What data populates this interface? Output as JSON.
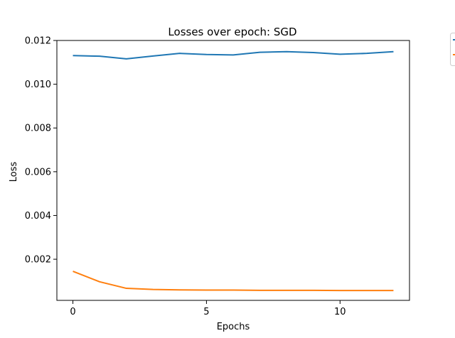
{
  "chart_data": {
    "type": "line",
    "title": "Losses over epoch: SGD",
    "xlabel": "Epochs",
    "ylabel": "Loss",
    "xlim": [
      -0.6,
      12.6
    ],
    "ylim": [
      0.00012,
      0.012
    ],
    "xticks": [
      0,
      5,
      10
    ],
    "yticks": [
      0.002,
      0.004,
      0.006,
      0.008,
      0.01,
      0.012
    ],
    "ytick_labels": [
      "0.002",
      "0.004",
      "0.006",
      "0.008",
      "0.010",
      "0.012"
    ],
    "grid": false,
    "legend": {
      "position": "outside-top-right",
      "clipped": true
    },
    "x": [
      0,
      1,
      2,
      3,
      4,
      5,
      6,
      7,
      8,
      9,
      10,
      11,
      12
    ],
    "series": [
      {
        "color": "#1f77b4",
        "values": [
          0.01131,
          0.01128,
          0.01116,
          0.01129,
          0.01141,
          0.01136,
          0.01134,
          0.01146,
          0.01149,
          0.01145,
          0.01137,
          0.01141,
          0.01149
        ]
      },
      {
        "color": "#ff7f0e",
        "values": [
          0.00145,
          0.00097,
          0.00067,
          0.00062,
          0.0006,
          0.00059,
          0.00059,
          0.00058,
          0.00058,
          0.00058,
          0.00057,
          0.00057,
          0.00057
        ]
      }
    ]
  }
}
